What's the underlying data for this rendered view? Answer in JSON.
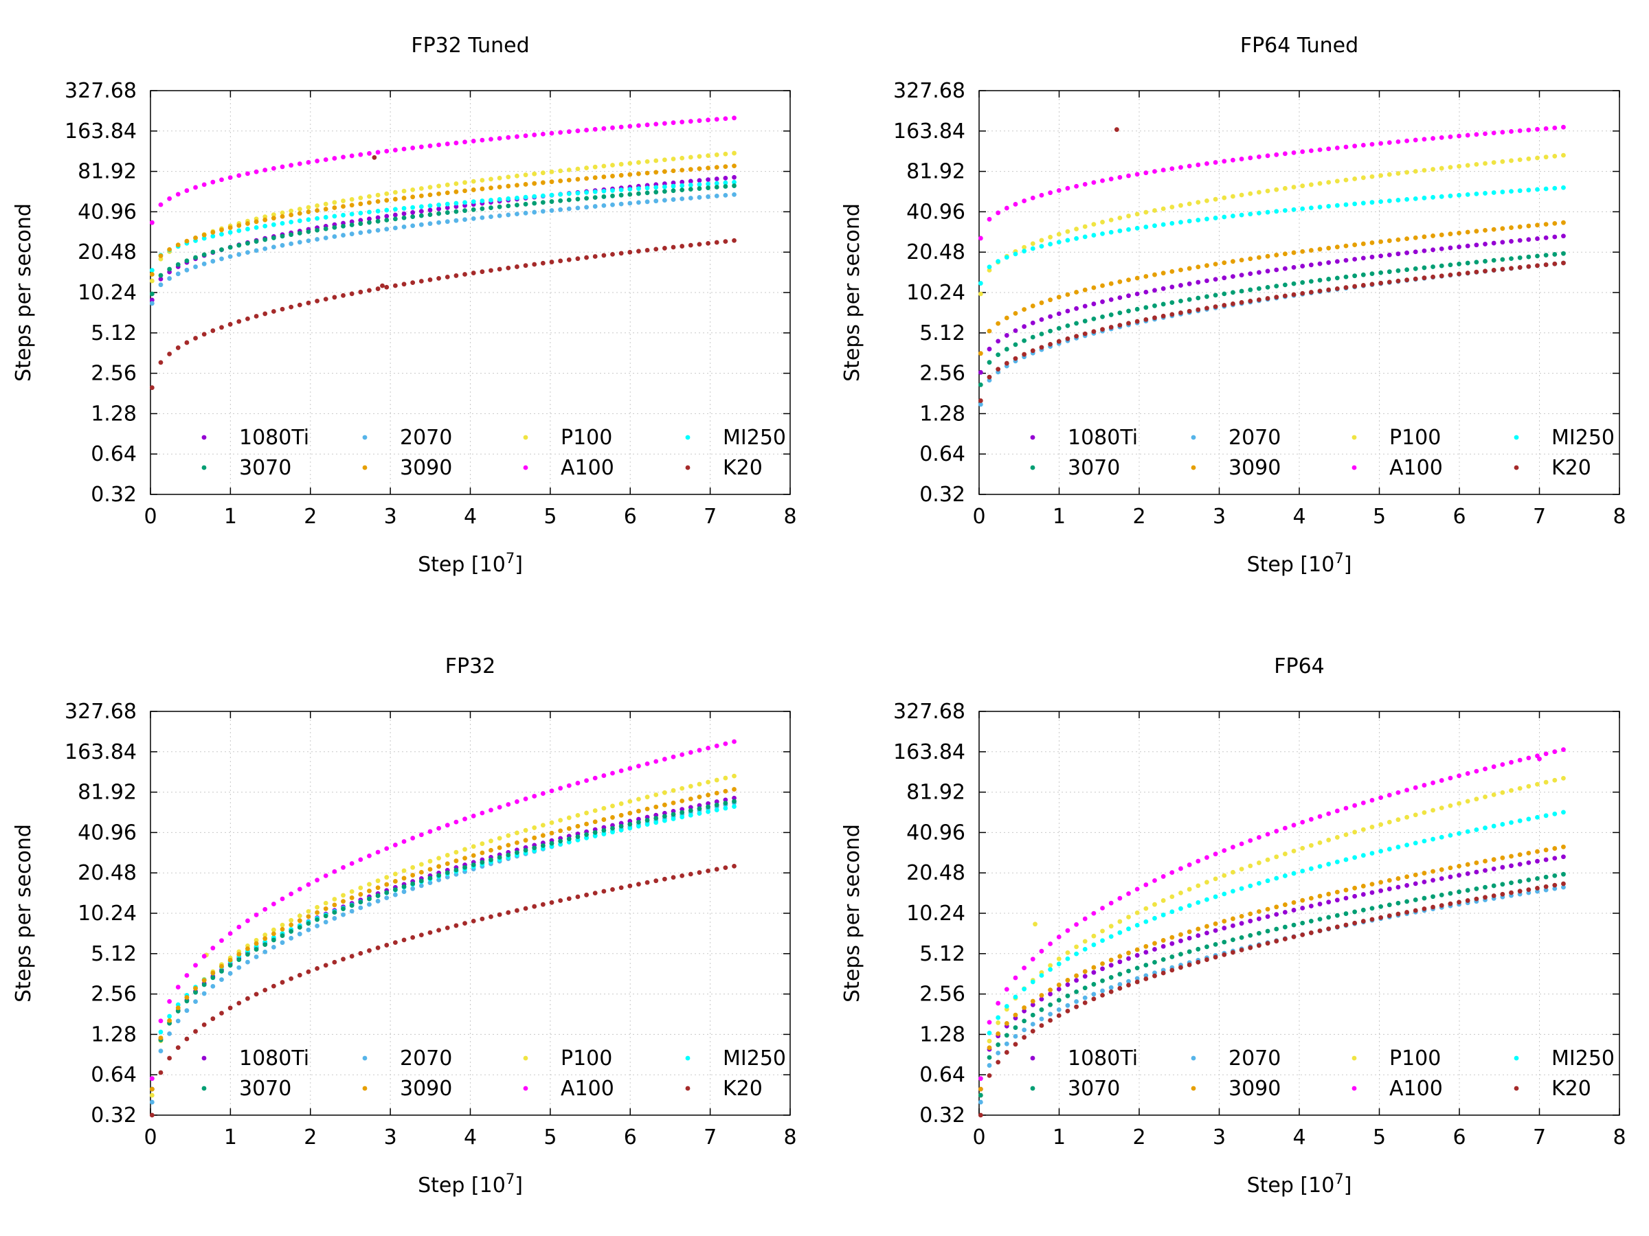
{
  "chart_data": [
    {
      "type": "scatter",
      "title": "FP32 Tuned",
      "xlabel": "Step [10^7]",
      "ylabel": "Steps per second",
      "xlim": [
        0,
        8
      ],
      "ylim": [
        0.32,
        327.68
      ],
      "yscale": "log2",
      "xticks": [
        "0",
        "1",
        "2",
        "3",
        "4",
        "5",
        "6",
        "7",
        "8"
      ],
      "yticks": [
        "327.68",
        "163.84",
        "81.92",
        "40.96",
        "20.48",
        "10.24",
        "5.12",
        "2.56",
        "1.28",
        "0.64",
        "0.32"
      ],
      "legend_position": "bottom",
      "series": [
        {
          "name": "1080Ti",
          "color": "#9400d3",
          "start": 9.0,
          "end": 74,
          "outliers": []
        },
        {
          "name": "2070",
          "color": "#56b4e9",
          "start": 8.5,
          "end": 55,
          "outliers": []
        },
        {
          "name": "P100",
          "color": "#f0e442",
          "start": 12.5,
          "end": 112,
          "outliers": []
        },
        {
          "name": "MI250",
          "color": "#00ffff",
          "start": 15.0,
          "end": 68,
          "outliers": []
        },
        {
          "name": "3070",
          "color": "#009e73",
          "start": 10.0,
          "end": 64,
          "outliers": []
        },
        {
          "name": "3090",
          "color": "#e69f00",
          "start": 14.0,
          "end": 90,
          "outliers": []
        },
        {
          "name": "A100",
          "color": "#ff00ff",
          "start": 34.0,
          "end": 205,
          "outliers": []
        },
        {
          "name": "K20",
          "color": "#a52a2a",
          "start": 2.0,
          "end": 25,
          "outliers": [
            [
              2.8,
              104
            ],
            [
              2.9,
              11.5
            ]
          ]
        }
      ]
    },
    {
      "type": "scatter",
      "title": "FP64 Tuned",
      "xlabel": "Step [10^7]",
      "ylabel": "Steps per second",
      "xlim": [
        0,
        8
      ],
      "ylim": [
        0.32,
        327.68
      ],
      "yscale": "log2",
      "xticks": [
        "0",
        "1",
        "2",
        "3",
        "4",
        "5",
        "6",
        "7",
        "8"
      ],
      "yticks": [
        "327.68",
        "163.84",
        "81.92",
        "40.96",
        "20.48",
        "10.24",
        "5.12",
        "2.56",
        "1.28",
        "0.64",
        "0.32"
      ],
      "legend_position": "bottom",
      "series": [
        {
          "name": "1080Ti",
          "color": "#9400d3",
          "start": 2.6,
          "end": 27,
          "outliers": []
        },
        {
          "name": "2070",
          "color": "#56b4e9",
          "start": 1.5,
          "end": 17,
          "outliers": []
        },
        {
          "name": "P100",
          "color": "#f0e442",
          "start": 10.0,
          "end": 108,
          "outliers": []
        },
        {
          "name": "MI250",
          "color": "#00ffff",
          "start": 12.0,
          "end": 62,
          "outliers": []
        },
        {
          "name": "3070",
          "color": "#009e73",
          "start": 2.1,
          "end": 20,
          "outliers": []
        },
        {
          "name": "3090",
          "color": "#e69f00",
          "start": 3.6,
          "end": 34,
          "outliers": []
        },
        {
          "name": "A100",
          "color": "#ff00ff",
          "start": 26.0,
          "end": 175,
          "outliers": []
        },
        {
          "name": "K20",
          "color": "#a52a2a",
          "start": 1.6,
          "end": 17,
          "outliers": [
            [
              1.72,
              168
            ]
          ]
        }
      ]
    },
    {
      "type": "scatter",
      "title": "FP32",
      "xlabel": "Step [10^7]",
      "ylabel": "Steps per second",
      "xlim": [
        0,
        8
      ],
      "ylim": [
        0.32,
        327.68
      ],
      "yscale": "log2",
      "xticks": [
        "0",
        "1",
        "2",
        "3",
        "4",
        "5",
        "6",
        "7",
        "8"
      ],
      "yticks": [
        "327.68",
        "163.84",
        "81.92",
        "40.96",
        "20.48",
        "10.24",
        "5.12",
        "2.56",
        "1.28",
        "0.64",
        "0.32"
      ],
      "legend_position": "bottom",
      "series": [
        {
          "name": "1080Ti",
          "color": "#9400d3",
          "start": 0.5,
          "end": 74,
          "outliers": []
        },
        {
          "name": "2070",
          "color": "#56b4e9",
          "start": 0.4,
          "end": 68,
          "outliers": []
        },
        {
          "name": "P100",
          "color": "#f0e442",
          "start": 0.45,
          "end": 108,
          "outliers": [
            [
              0.7,
              5.0
            ]
          ]
        },
        {
          "name": "MI250",
          "color": "#00ffff",
          "start": 0.6,
          "end": 64,
          "outliers": []
        },
        {
          "name": "3070",
          "color": "#009e73",
          "start": 0.5,
          "end": 70,
          "outliers": []
        },
        {
          "name": "3090",
          "color": "#e69f00",
          "start": 0.5,
          "end": 86,
          "outliers": []
        },
        {
          "name": "A100",
          "color": "#ff00ff",
          "start": 0.6,
          "end": 195,
          "outliers": []
        },
        {
          "name": "K20",
          "color": "#a52a2a",
          "start": 0.32,
          "end": 23,
          "outliers": []
        }
      ]
    },
    {
      "type": "scatter",
      "title": "FP64",
      "xlabel": "Step [10^7]",
      "ylabel": "Steps per second",
      "xlim": [
        0,
        8
      ],
      "ylim": [
        0.32,
        327.68
      ],
      "yscale": "log2",
      "xticks": [
        "0",
        "1",
        "2",
        "3",
        "4",
        "5",
        "6",
        "7",
        "8"
      ],
      "yticks": [
        "327.68",
        "163.84",
        "81.92",
        "40.96",
        "20.48",
        "10.24",
        "5.12",
        "2.56",
        "1.28",
        "0.64",
        "0.32"
      ],
      "legend_position": "bottom",
      "series": [
        {
          "name": "1080Ti",
          "color": "#9400d3",
          "start": 0.5,
          "end": 27,
          "outliers": []
        },
        {
          "name": "2070",
          "color": "#56b4e9",
          "start": 0.4,
          "end": 16,
          "outliers": []
        },
        {
          "name": "P100",
          "color": "#f0e442",
          "start": 0.45,
          "end": 104,
          "outliers": [
            [
              0.7,
              8.5
            ]
          ]
        },
        {
          "name": "MI250",
          "color": "#00ffff",
          "start": 0.6,
          "end": 58,
          "outliers": []
        },
        {
          "name": "3070",
          "color": "#009e73",
          "start": 0.45,
          "end": 20,
          "outliers": []
        },
        {
          "name": "3090",
          "color": "#e69f00",
          "start": 0.5,
          "end": 32,
          "outliers": []
        },
        {
          "name": "A100",
          "color": "#ff00ff",
          "start": 0.6,
          "end": 170,
          "outliers": [
            [
              7.0,
              145
            ]
          ]
        },
        {
          "name": "K20",
          "color": "#a52a2a",
          "start": 0.32,
          "end": 17,
          "outliers": []
        }
      ]
    }
  ],
  "xlabel_text": "Step [10",
  "xlabel_exp": "7",
  "xlabel_close": "]"
}
